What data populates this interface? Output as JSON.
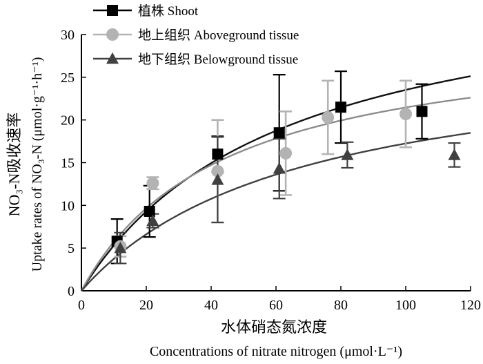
{
  "chart_data": {
    "type": "scatter",
    "xlabel_zh": "水体硝态氮浓度",
    "xlabel_en": "Concentrations of nitrate nitrogen (μmol·L⁻¹)",
    "ylabel_zh": "NO₃-N吸收速率",
    "ylabel_en": "Uptake rates of NO₃-N (μmol·g⁻¹·h⁻¹)",
    "xlim": [
      0,
      120
    ],
    "ylim": [
      0,
      30
    ],
    "x_ticks": [
      0,
      20,
      40,
      60,
      80,
      100,
      120
    ],
    "y_ticks": [
      0,
      5,
      10,
      15,
      20,
      25,
      30
    ],
    "grid": false,
    "legend_position": "top-left",
    "series": [
      {
        "name": "植株 Shoot",
        "marker": "square",
        "color": "#000000",
        "points": [
          {
            "x": 11,
            "y": 5.8,
            "err": 2.6
          },
          {
            "x": 21,
            "y": 9.3,
            "err": 3.0
          },
          {
            "x": 42,
            "y": 16.0,
            "err": 2.1
          },
          {
            "x": 61,
            "y": 18.5,
            "err": 6.8
          },
          {
            "x": 80,
            "y": 21.5,
            "err": 4.2
          },
          {
            "x": 105,
            "y": 21.0,
            "err": 3.2
          }
        ],
        "fit": {
          "vmax": 38.1,
          "km": 62.0
        }
      },
      {
        "name": "地上组织 Aboveground tissue",
        "marker": "circle",
        "color": "#b3b3b3",
        "points": [
          {
            "x": 12,
            "y": 5.2,
            "err": 1.2
          },
          {
            "x": 22,
            "y": 12.6,
            "err": 0.7
          },
          {
            "x": 42,
            "y": 14.0,
            "err": 6.0
          },
          {
            "x": 63,
            "y": 16.1,
            "err": 4.9
          },
          {
            "x": 76,
            "y": 20.3,
            "err": 4.3
          },
          {
            "x": 100,
            "y": 20.7,
            "err": 3.9
          }
        ],
        "fit": {
          "vmax": 30.9,
          "km": 44.0
        }
      },
      {
        "name": "地下组织 Belowground tissue",
        "marker": "triangle",
        "color": "#404040",
        "points": [
          {
            "x": 12,
            "y": 5.0,
            "err": 1.8
          },
          {
            "x": 22,
            "y": 8.2,
            "err": 0.8
          },
          {
            "x": 42,
            "y": 13.0,
            "err": 5.0
          },
          {
            "x": 61,
            "y": 14.3,
            "err": 3.5
          },
          {
            "x": 82,
            "y": 15.9,
            "err": 1.5
          },
          {
            "x": 115,
            "y": 15.9,
            "err": 1.4
          }
        ],
        "fit": {
          "vmax": 28.8,
          "km": 67.0
        }
      }
    ]
  }
}
